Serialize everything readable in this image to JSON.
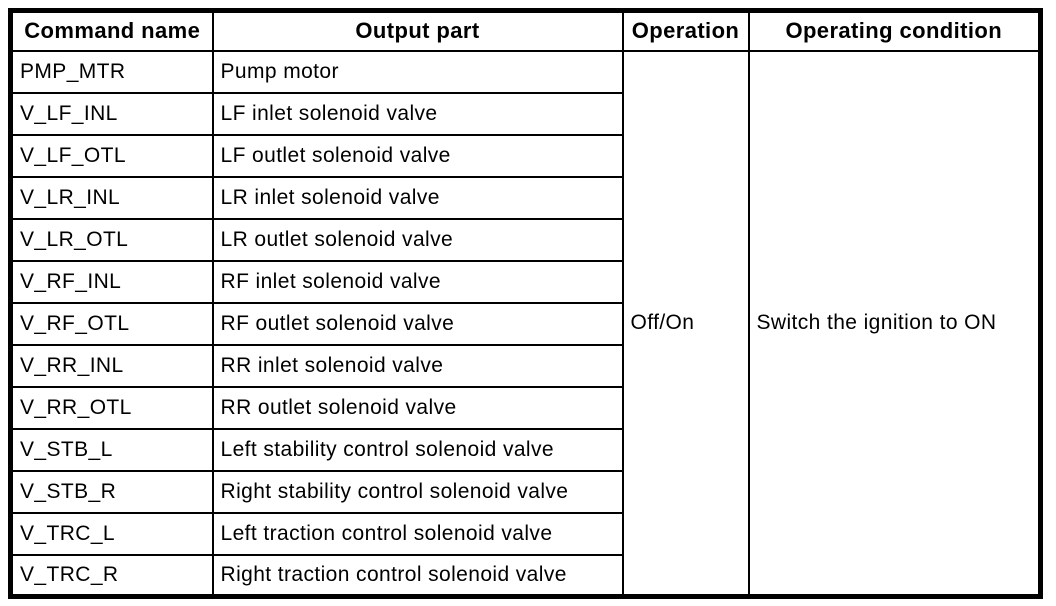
{
  "table": {
    "headers": {
      "command": "Command name",
      "output": "Output part",
      "operation": "Operation",
      "condition": "Operating condition"
    },
    "rows": [
      {
        "command": "PMP_MTR",
        "output": "Pump motor"
      },
      {
        "command": "V_LF_INL",
        "output": "LF inlet solenoid valve"
      },
      {
        "command": "V_LF_OTL",
        "output": "LF outlet solenoid valve"
      },
      {
        "command": "V_LR_INL",
        "output": "LR inlet solenoid valve"
      },
      {
        "command": "V_LR_OTL",
        "output": "LR outlet solenoid valve"
      },
      {
        "command": "V_RF_INL",
        "output": "RF inlet solenoid valve"
      },
      {
        "command": "V_RF_OTL",
        "output": "RF outlet solenoid valve"
      },
      {
        "command": "V_RR_INL",
        "output": "RR inlet solenoid valve"
      },
      {
        "command": "V_RR_OTL",
        "output": "RR outlet solenoid valve"
      },
      {
        "command": "V_STB_L",
        "output": "Left stability control solenoid valve"
      },
      {
        "command": "V_STB_R",
        "output": "Right stability control solenoid valve"
      },
      {
        "command": "V_TRC_L",
        "output": "Left traction control solenoid valve"
      },
      {
        "command": "V_TRC_R",
        "output": "Right traction control solenoid valve"
      }
    ],
    "operation_value": "Off/On",
    "condition_value": "Switch the ignition to ON"
  },
  "colors": {
    "border": "#000000",
    "background": "#ffffff",
    "text": "#000000"
  }
}
